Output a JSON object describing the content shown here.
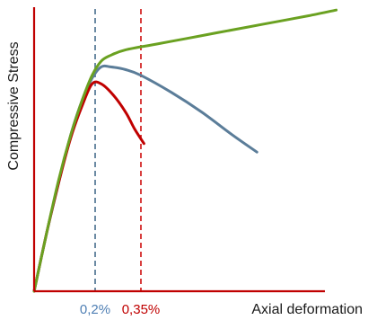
{
  "chart_data": {
    "type": "line",
    "title": "",
    "xlabel": "Axial deformation",
    "ylabel": "Compressive Stress",
    "xlim": [
      0,
      1.0
    ],
    "ylim": [
      0,
      1.0
    ],
    "grid": false,
    "legend": "none",
    "colors": {
      "axis": "#c00000",
      "green": "#6aa121",
      "blue": "#5b7d99",
      "red": "#c00000",
      "blue_dash": "#5b7d99",
      "red_dash": "#d42a2a",
      "label_blue": "#4f7fb4",
      "label_red": "#c00000"
    },
    "reference_lines": [
      {
        "x": 0.2,
        "label": "0,2%",
        "color": "#5b7d99"
      },
      {
        "x": 0.35,
        "label": "0,35%",
        "color": "#d42a2a"
      }
    ],
    "series": [
      {
        "color": "#6aa121",
        "x": [
          0,
          0.04,
          0.08,
          0.12,
          0.16,
          0.19,
          0.22,
          0.25,
          0.3,
          0.4,
          0.5,
          0.6,
          0.7,
          0.8,
          0.9,
          0.99
        ],
        "y": [
          0,
          0.2,
          0.39,
          0.55,
          0.68,
          0.76,
          0.81,
          0.83,
          0.85,
          0.87,
          0.89,
          0.91,
          0.93,
          0.95,
          0.97,
          0.99
        ]
      },
      {
        "color": "#5b7d99",
        "x": [
          0,
          0.04,
          0.08,
          0.12,
          0.16,
          0.19,
          0.22,
          0.25,
          0.3,
          0.35,
          0.45,
          0.55,
          0.65,
          0.73
        ],
        "y": [
          0,
          0.2,
          0.38,
          0.55,
          0.68,
          0.75,
          0.79,
          0.79,
          0.78,
          0.76,
          0.7,
          0.63,
          0.55,
          0.49
        ]
      },
      {
        "color": "#c00000",
        "x": [
          0,
          0.04,
          0.08,
          0.12,
          0.16,
          0.19,
          0.22,
          0.26,
          0.3,
          0.33,
          0.36
        ],
        "y": [
          0,
          0.2,
          0.38,
          0.54,
          0.66,
          0.73,
          0.73,
          0.69,
          0.63,
          0.57,
          0.52
        ]
      }
    ]
  }
}
